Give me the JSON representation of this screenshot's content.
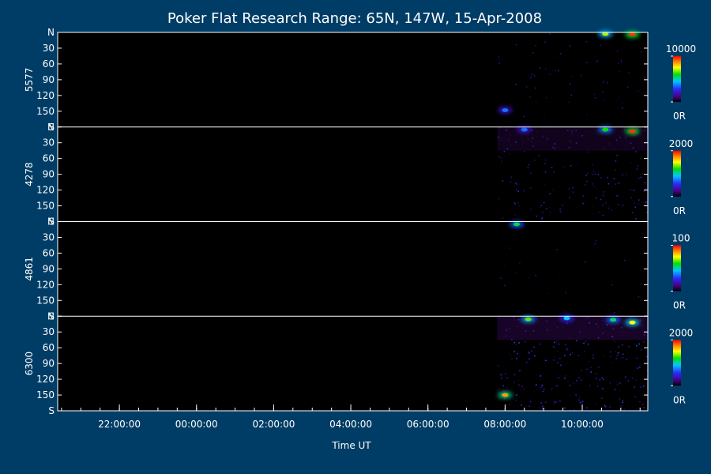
{
  "chart_data": {
    "type": "heatmap",
    "title": "Poker Flat Research Range: 65N, 147W, 15-Apr-2008",
    "xlabel": "Time UT",
    "x_ticks": [
      "22:00:00",
      "00:00:00",
      "02:00:00",
      "04:00:00",
      "06:00:00",
      "08:00:00",
      "10:00:00"
    ],
    "x_range_hours": [
      20.4,
      35.7
    ],
    "x_tick_values_hours": [
      22,
      24,
      26,
      28,
      30,
      32,
      34
    ],
    "y_ticks": [
      "N",
      "30",
      "60",
      "90",
      "120",
      "150",
      "S"
    ],
    "y_tick_values": [
      0,
      30,
      60,
      90,
      120,
      150,
      180
    ],
    "colors": {
      "background": "#003d66",
      "plot": "#000000",
      "axis": "#ffffff"
    },
    "panels": [
      {
        "label": "5577",
        "colorbar_max": "10000",
        "colorbar_min": "0R",
        "data_start_hour": 31.8,
        "noise_level": 0.08,
        "hotspots": [
          {
            "x": 34.6,
            "y": 3,
            "intensity": 0.7
          },
          {
            "x": 35.3,
            "y": 4,
            "intensity": 0.95
          },
          {
            "x": 32.0,
            "y": 148,
            "intensity": 0.35
          }
        ]
      },
      {
        "label": "4278",
        "colorbar_max": "2000",
        "colorbar_min": "0R",
        "data_start_hour": 31.8,
        "noise_level": 0.22,
        "hotspots": [
          {
            "x": 34.6,
            "y": 5,
            "intensity": 0.6
          },
          {
            "x": 35.3,
            "y": 8,
            "intensity": 0.95
          },
          {
            "x": 32.5,
            "y": 5,
            "intensity": 0.35
          }
        ]
      },
      {
        "label": "4861",
        "colorbar_max": "100",
        "colorbar_min": "0R",
        "data_start_hour": 31.8,
        "noise_level": 0.03,
        "hotspots": [
          {
            "x": 32.3,
            "y": 5,
            "intensity": 0.55
          }
        ]
      },
      {
        "label": "6300",
        "colorbar_max": "2000",
        "colorbar_min": "0R",
        "data_start_hour": 31.8,
        "noise_level": 0.3,
        "hotspots": [
          {
            "x": 32.6,
            "y": 6,
            "intensity": 0.65
          },
          {
            "x": 34.8,
            "y": 7,
            "intensity": 0.55
          },
          {
            "x": 35.3,
            "y": 12,
            "intensity": 0.75
          },
          {
            "x": 32.0,
            "y": 150,
            "intensity": 0.85
          },
          {
            "x": 33.6,
            "y": 4,
            "intensity": 0.45
          }
        ]
      }
    ]
  }
}
